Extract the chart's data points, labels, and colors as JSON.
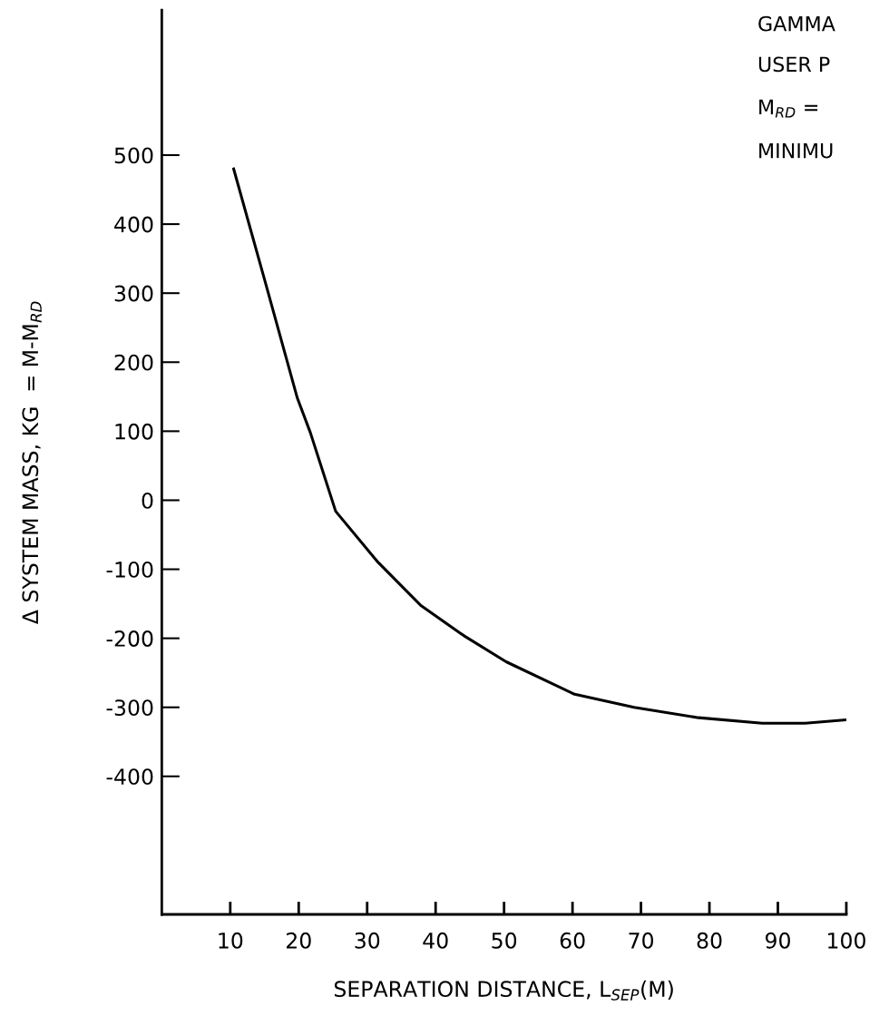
{
  "chart_data": {
    "type": "line",
    "xlabel": "SEPARATION DISTANCE, L$_{SEP}$(M)",
    "ylabel": "Δ SYSTEM MASS, KG  = M-M$_{RD}$",
    "annotations": [
      "GAMMA",
      "USER P",
      "M$_{RD}$ =",
      "MINIMU"
    ],
    "series": [
      {
        "color": "#000000",
        "x": [
          10.5,
          15,
          19.8,
          21.7,
          25.4,
          31.6,
          37.9,
          44.1,
          50.3,
          60.3,
          69.0,
          78.4,
          87.7,
          94.0,
          100
        ],
        "values": [
          480,
          320,
          148,
          98,
          -16,
          -90,
          -153,
          -196,
          -234,
          -281,
          -300,
          -315,
          -323,
          -323,
          -318
        ]
      }
    ],
    "xlim": [
      0,
      100
    ],
    "xticks": [
      10,
      20,
      30,
      40,
      50,
      60,
      70,
      80,
      90,
      100
    ],
    "ylim": [
      -600,
      710
    ],
    "yticks": [
      -400,
      -300,
      -200,
      -100,
      0,
      100,
      200,
      300,
      400,
      500
    ],
    "grid": false,
    "legend": false,
    "marker": "none",
    "line_style": "solid"
  }
}
